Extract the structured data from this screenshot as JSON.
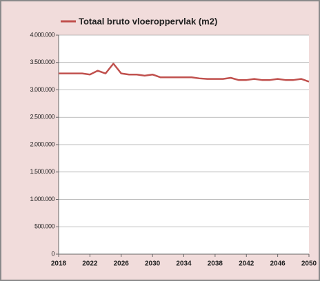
{
  "chart_data": {
    "type": "line",
    "x": [
      2018,
      2019,
      2020,
      2021,
      2022,
      2023,
      2024,
      2025,
      2026,
      2027,
      2028,
      2029,
      2030,
      2031,
      2032,
      2033,
      2034,
      2035,
      2036,
      2037,
      2038,
      2039,
      2040,
      2041,
      2042,
      2043,
      2044,
      2045,
      2046,
      2047,
      2048,
      2049,
      2050
    ],
    "series": [
      {
        "name": "Totaal bruto vloeroppervlak (m2)",
        "color": "#c0504d",
        "values": [
          3300000,
          3300000,
          3300000,
          3300000,
          3280000,
          3350000,
          3300000,
          3480000,
          3300000,
          3280000,
          3280000,
          3260000,
          3280000,
          3230000,
          3230000,
          3230000,
          3230000,
          3230000,
          3210000,
          3200000,
          3200000,
          3200000,
          3220000,
          3180000,
          3180000,
          3200000,
          3180000,
          3180000,
          3200000,
          3180000,
          3180000,
          3200000,
          3150000
        ]
      }
    ],
    "xlim": [
      2018,
      2050
    ],
    "xticks": [
      2018,
      2022,
      2026,
      2030,
      2034,
      2038,
      2042,
      2046,
      2050
    ],
    "ylim": [
      0,
      4000000
    ],
    "yticks": [
      0,
      {
        "value": 500000,
        "label": "500.000"
      },
      {
        "value": 1000000,
        "label": "1.000.000"
      },
      {
        "value": 1500000,
        "label": "1.500.000"
      },
      {
        "value": 2000000,
        "label": "2.000.000"
      },
      {
        "value": 2500000,
        "label": "2.500.000"
      },
      {
        "value": 3000000,
        "label": "3.000.000"
      },
      {
        "value": 3500000,
        "label": "3.500.000"
      },
      {
        "value": 4000000,
        "label": "4.000.000"
      }
    ],
    "grid": true,
    "legend": "top"
  }
}
